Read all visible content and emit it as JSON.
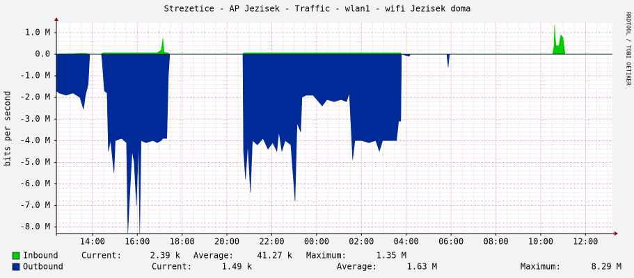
{
  "chart_data": {
    "type": "area",
    "title": "Strezetice - AP Jezisek - Traffic - wlan1 - wifi Jezisek doma",
    "ylabel": "bits per second",
    "watermark": "RRDTOOL / TOBI OETIKER",
    "x": [
      12.39,
      12.51,
      12.82,
      13.13,
      13.44,
      13.6,
      13.69,
      13.81,
      13.88,
      13.91,
      14.4,
      14.43,
      14.53,
      14.65,
      14.71,
      14.81,
      14.96,
      15.02,
      15.3,
      15.52,
      15.58,
      15.68,
      15.77,
      15.86,
      15.96,
      16.05,
      16.11,
      16.17,
      16.39,
      16.7,
      16.89,
      17.07,
      17.14,
      17.2,
      17.32,
      17.39,
      17.45,
      20.71,
      20.74,
      20.83,
      20.93,
      21.05,
      21.14,
      21.36,
      21.61,
      21.83,
      22.04,
      22.23,
      22.32,
      22.45,
      22.6,
      22.85,
      23.04,
      23.13,
      23.29,
      23.35,
      23.53,
      23.84,
      24.09,
      24.25,
      24.47,
      24.78,
      25.09,
      25.34,
      25.46,
      25.61,
      25.71,
      26.02,
      26.33,
      26.64,
      26.8,
      26.95,
      27.26,
      27.57,
      27.66,
      27.76,
      27.79,
      28.13,
      28.19,
      29.81,
      29.87,
      29.93,
      34.53,
      34.59,
      34.62,
      34.68,
      34.81,
      34.9,
      34.99,
      35.09,
      37.2
    ],
    "series": [
      {
        "name": "Inbound",
        "color": "#00cc00",
        "stats": [
          "2.39 k",
          "41.27 k",
          "1.35 M"
        ],
        "values": [
          0,
          20000,
          20000,
          30000,
          50000,
          50000,
          50000,
          30000,
          0,
          0,
          0,
          60000,
          70000,
          70000,
          70000,
          70000,
          70000,
          70000,
          70000,
          70000,
          70000,
          70000,
          70000,
          70000,
          70000,
          70000,
          70000,
          70000,
          70000,
          70000,
          70000,
          200000,
          750000,
          100000,
          70000,
          70000,
          0,
          0,
          70000,
          70000,
          70000,
          70000,
          70000,
          70000,
          70000,
          70000,
          70000,
          70000,
          70000,
          70000,
          70000,
          70000,
          70000,
          70000,
          70000,
          70000,
          70000,
          70000,
          70000,
          70000,
          70000,
          70000,
          70000,
          70000,
          70000,
          70000,
          70000,
          70000,
          70000,
          70000,
          70000,
          70000,
          70000,
          70000,
          70000,
          70000,
          0,
          0,
          0,
          0,
          0,
          0,
          0,
          350000,
          1350000,
          400000,
          400000,
          900000,
          800000,
          0,
          0
        ]
      },
      {
        "name": "Outbound",
        "color": "#002a97",
        "stats": [
          "1.49 k",
          "1.63 M",
          "8.29 M"
        ],
        "values": [
          -1700000,
          -1800000,
          -1900000,
          -1800000,
          -2000000,
          -2550000,
          -1900000,
          -1400000,
          0,
          0,
          0,
          -300000,
          -1700000,
          -1800000,
          -4500000,
          -4000000,
          -5500000,
          -4000000,
          -3900000,
          -4100000,
          -8300000,
          -6200000,
          -4500000,
          -5000000,
          -7000000,
          -4200000,
          -8300000,
          -4000000,
          -4100000,
          -4000000,
          -4100000,
          -4000000,
          -3900000,
          -3900000,
          -3900000,
          -1000000,
          0,
          0,
          -4500000,
          -5800000,
          -4200000,
          -6400000,
          -4000000,
          -4200000,
          -3900000,
          -4400000,
          -4100000,
          -4500000,
          -3600000,
          -4500000,
          -4000000,
          -4200000,
          -6800000,
          -3200000,
          -3600000,
          -2000000,
          -1900000,
          -1900000,
          -2200000,
          -2400000,
          -2100000,
          -2200000,
          -2100000,
          -2200000,
          -1800000,
          -4900000,
          -4000000,
          -4000000,
          -4100000,
          -4000000,
          -4500000,
          -4000000,
          -4000000,
          -4000000,
          -3100000,
          -3100000,
          0,
          -100000,
          0,
          0,
          -600000,
          0,
          0,
          0,
          0,
          0,
          0,
          0,
          0,
          0,
          0
        ]
      }
    ],
    "stat_labels": [
      "Current:",
      "Average:",
      "Maximum:"
    ],
    "xlim": [
      12.39,
      37.2
    ],
    "xticks": [
      {
        "value": 14,
        "label": "14:00"
      },
      {
        "value": 16,
        "label": "16:00"
      },
      {
        "value": 18,
        "label": "18:00"
      },
      {
        "value": 20,
        "label": "20:00"
      },
      {
        "value": 22,
        "label": "22:00"
      },
      {
        "value": 24,
        "label": "00:00"
      },
      {
        "value": 26,
        "label": "02:00"
      },
      {
        "value": 28,
        "label": "04:00"
      },
      {
        "value": 30,
        "label": "06:00"
      },
      {
        "value": 32,
        "label": "08:00"
      },
      {
        "value": 34,
        "label": "10:00"
      },
      {
        "value": 36,
        "label": "12:00"
      }
    ],
    "ylim": [
      -8300000,
      1450000
    ],
    "yticks": [
      {
        "value": 1000000,
        "label": "1.0 M"
      },
      {
        "value": 0,
        "label": "0.0"
      },
      {
        "value": -1000000,
        "label": "-1.0 M"
      },
      {
        "value": -2000000,
        "label": "-2.0 M"
      },
      {
        "value": -3000000,
        "label": "-3.0 M"
      },
      {
        "value": -4000000,
        "label": "-4.0 M"
      },
      {
        "value": -5000000,
        "label": "-5.0 M"
      },
      {
        "value": -6000000,
        "label": "-6.0 M"
      },
      {
        "value": -7000000,
        "label": "-7.0 M"
      },
      {
        "value": -8000000,
        "label": "-8.0 M"
      }
    ],
    "grid": true
  }
}
